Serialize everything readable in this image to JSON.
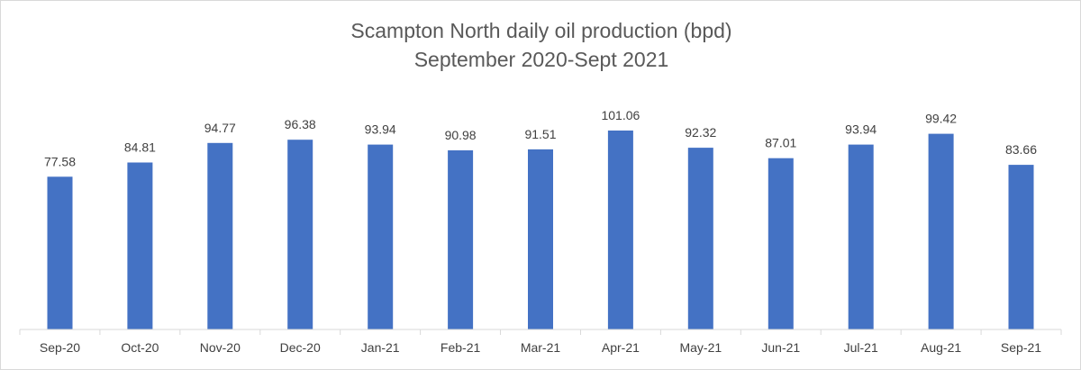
{
  "chart_data": {
    "type": "bar",
    "title": "Scampton North daily oil production (bpd)",
    "subtitle": "September 2020-Sept 2021",
    "xlabel": "",
    "ylabel": "",
    "categories": [
      "Sep-20",
      "Oct-20",
      "Nov-20",
      "Dec-20",
      "Jan-21",
      "Feb-21",
      "Mar-21",
      "Apr-21",
      "May-21",
      "Jun-21",
      "Jul-21",
      "Aug-21",
      "Sep-21"
    ],
    "values": [
      77.58,
      84.81,
      94.77,
      96.38,
      93.94,
      90.98,
      91.51,
      101.06,
      92.32,
      87.01,
      93.94,
      99.42,
      83.66
    ],
    "data_labels": [
      "77.58",
      "84.81",
      "94.77",
      "96.38",
      "93.94",
      "90.98",
      "91.51",
      "101.06",
      "92.32",
      "87.01",
      "93.94",
      "99.42",
      "83.66"
    ],
    "ylim": [
      0,
      120
    ],
    "grid": false,
    "legend": "none",
    "bar_color": "#4472C4",
    "axis_color": "#d9d9d9",
    "label_color": "#404040",
    "title_color": "#595959"
  }
}
